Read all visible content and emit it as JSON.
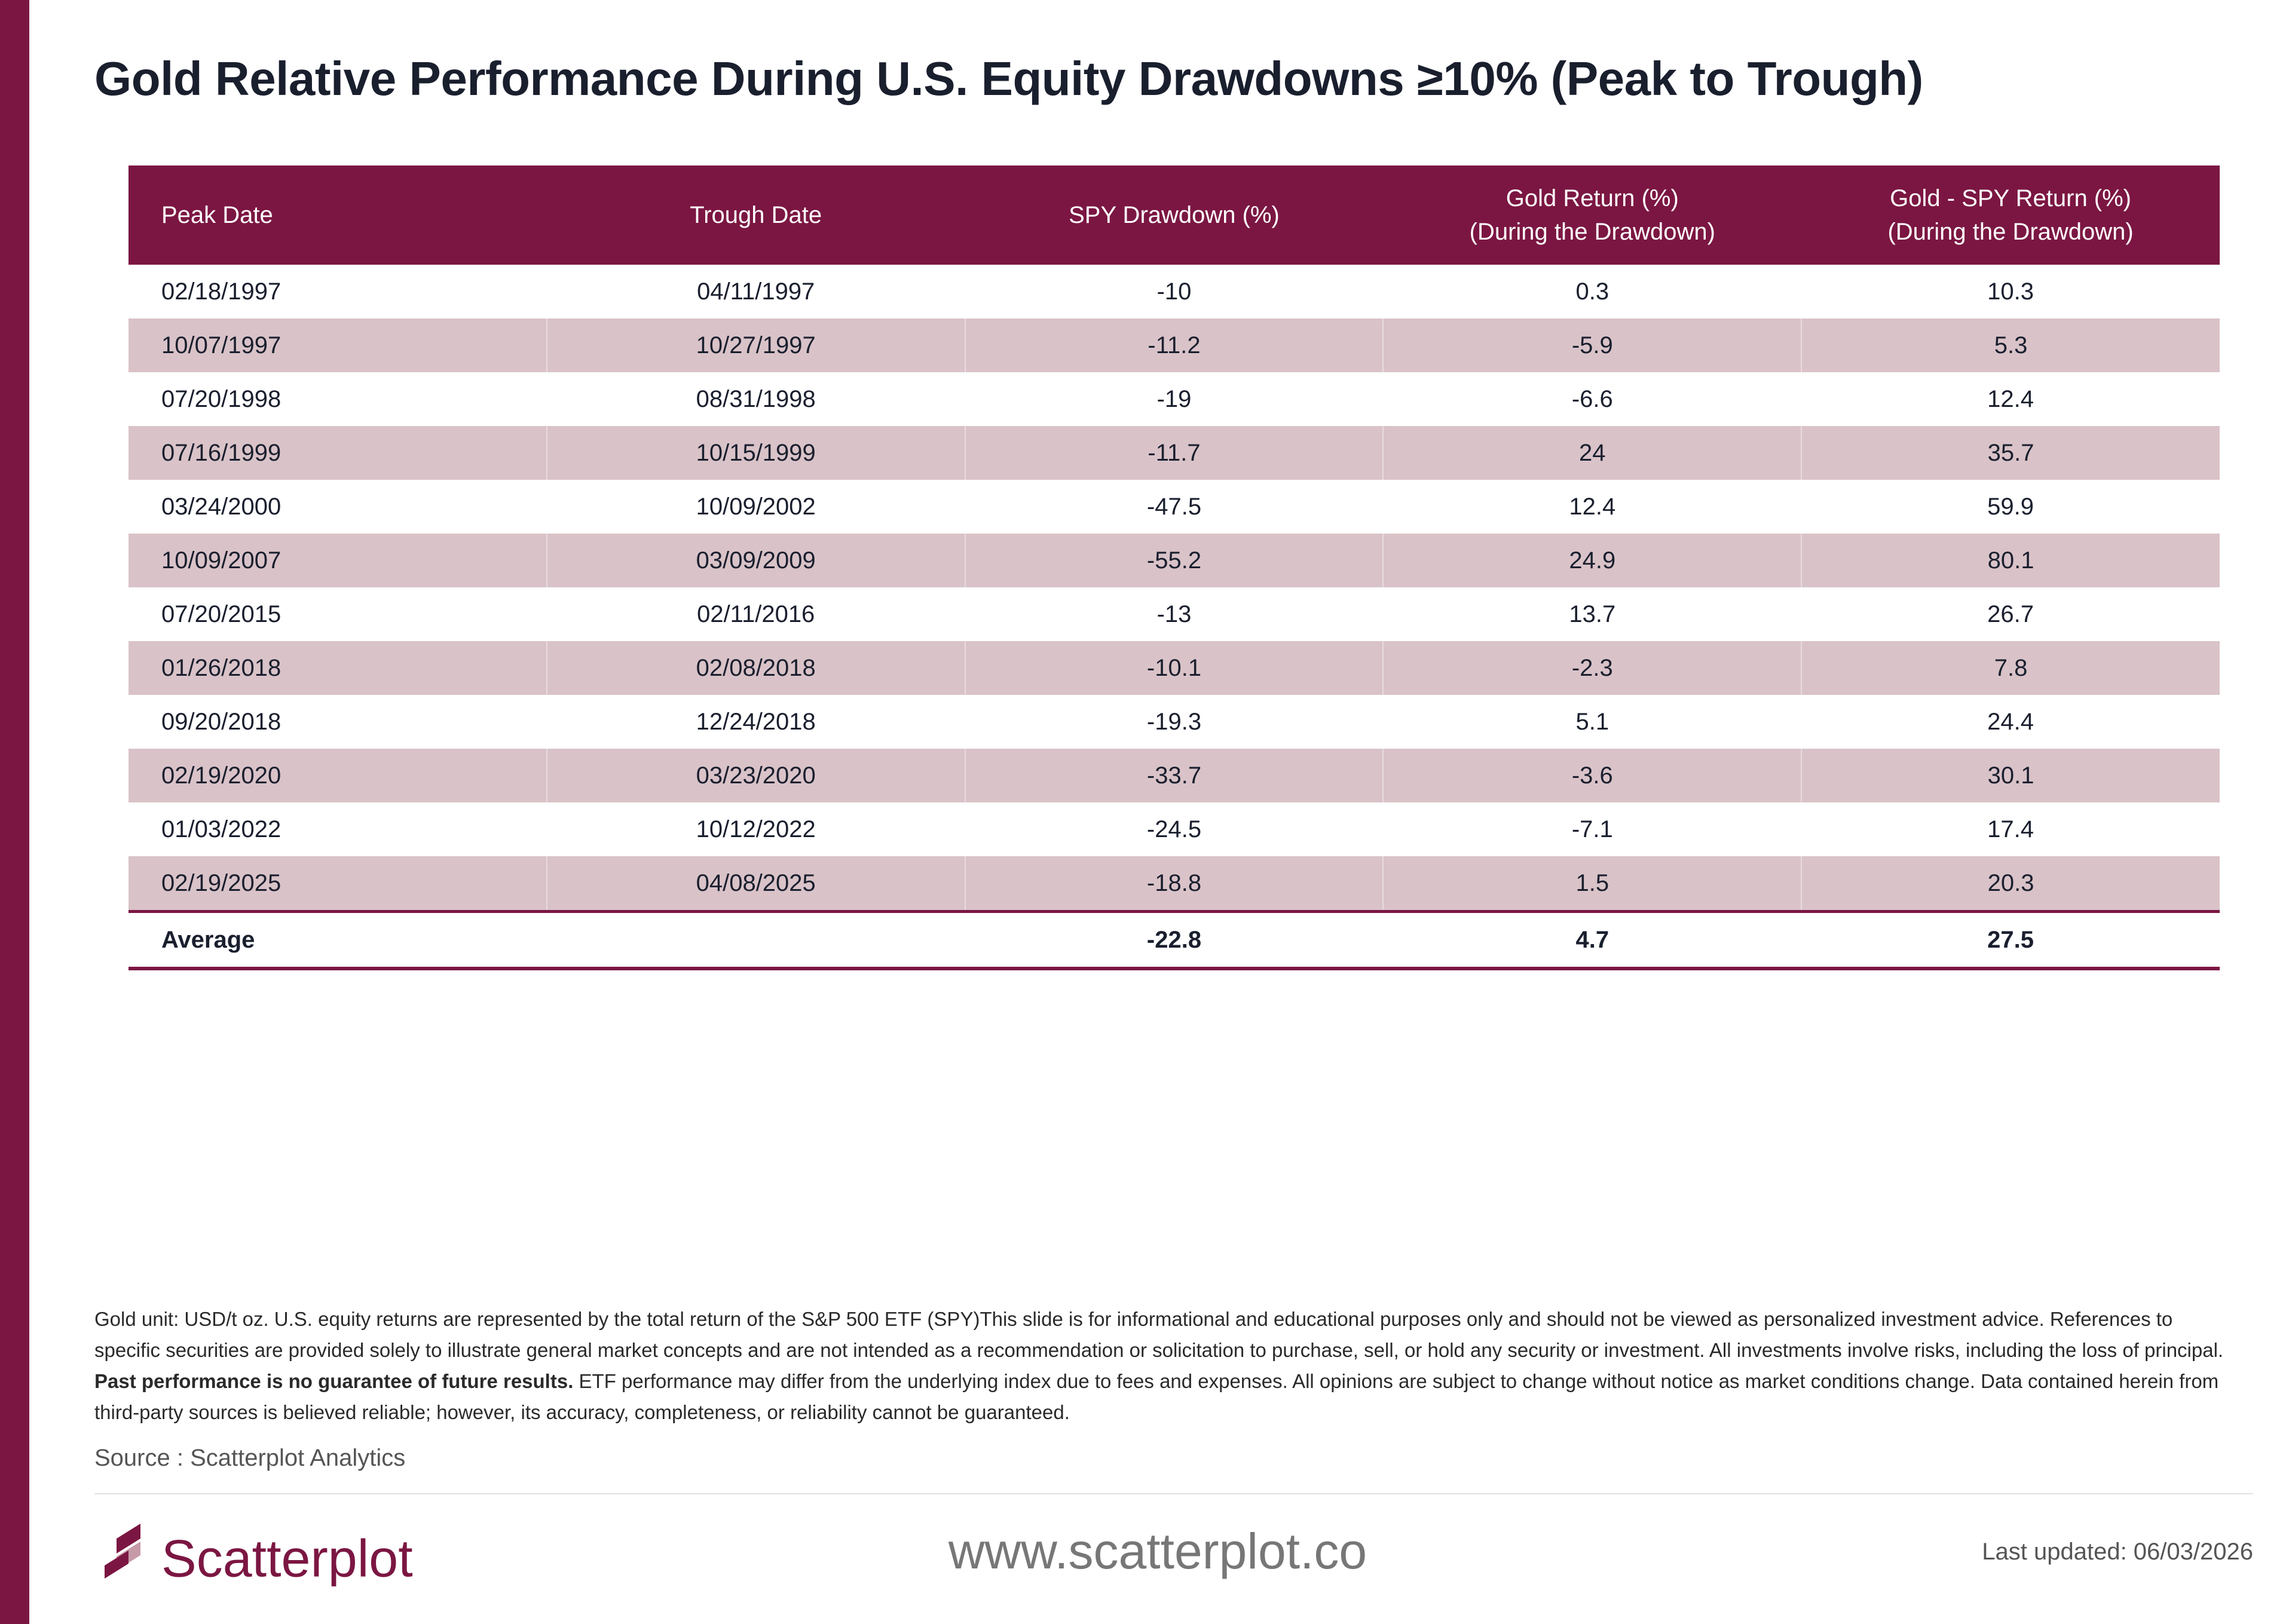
{
  "header": {
    "title": "Gold Relative Performance During U.S. Equity Drawdowns ≥10% (Peak to Trough)"
  },
  "table": {
    "columns": [
      [
        "Peak Date"
      ],
      [
        "Trough Date"
      ],
      [
        "SPY Drawdown (%)"
      ],
      [
        "Gold Return (%)",
        "(During the Drawdown)"
      ],
      [
        "Gold - SPY Return (%)",
        "(During the Drawdown)"
      ]
    ],
    "rows": [
      [
        "02/18/1997",
        "04/11/1997",
        -10,
        0.3,
        10.3
      ],
      [
        "10/07/1997",
        "10/27/1997",
        -11.2,
        -5.9,
        5.3
      ],
      [
        "07/20/1998",
        "08/31/1998",
        -19,
        -6.6,
        12.4
      ],
      [
        "07/16/1999",
        "10/15/1999",
        -11.7,
        24,
        35.7
      ],
      [
        "03/24/2000",
        "10/09/2002",
        -47.5,
        12.4,
        59.9
      ],
      [
        "10/09/2007",
        "03/09/2009",
        -55.2,
        24.9,
        80.1
      ],
      [
        "07/20/2015",
        "02/11/2016",
        -13,
        13.7,
        26.7
      ],
      [
        "01/26/2018",
        "02/08/2018",
        -10.1,
        -2.3,
        7.8
      ],
      [
        "09/20/2018",
        "12/24/2018",
        -19.3,
        5.1,
        24.4
      ],
      [
        "02/19/2020",
        "03/23/2020",
        -33.7,
        -3.6,
        30.1
      ],
      [
        "01/03/2022",
        "10/12/2022",
        -24.5,
        -7.1,
        17.4
      ],
      [
        "02/19/2025",
        "04/08/2025",
        -18.8,
        1.5,
        20.3
      ]
    ],
    "average": {
      "label": "Average",
      "spy": -22.8,
      "gold": 4.7,
      "diff": 27.5
    }
  },
  "footer": {
    "note_before": "Gold unit: USD/t oz. U.S. equity returns are represented by the total return of the S&P 500 ETF (SPY)This slide is for informational and educational purposes only and should not be viewed as personalized investment advice. References to specific securities are provided solely to illustrate general market concepts and are not intended as a recommendation or solicitation to purchase, sell, or hold any security or investment. All investments involve risks, including the loss of principal.",
    "note_bold": "Past performance is no guarantee of future results.",
    "note_after": "ETF performance may differ from the underlying index due to fees and expenses. All opinions are subject to change without notice as market conditions change. Data contained herein from third-party sources is believed reliable; however, its accuracy, completeness, or reliability cannot be guaranteed.",
    "source": "Source : Scatterplot Analytics",
    "logo": "Scatterplot",
    "url": "www.scatterplot.co",
    "last_updated": "Last updated: 06/03/2026"
  }
}
